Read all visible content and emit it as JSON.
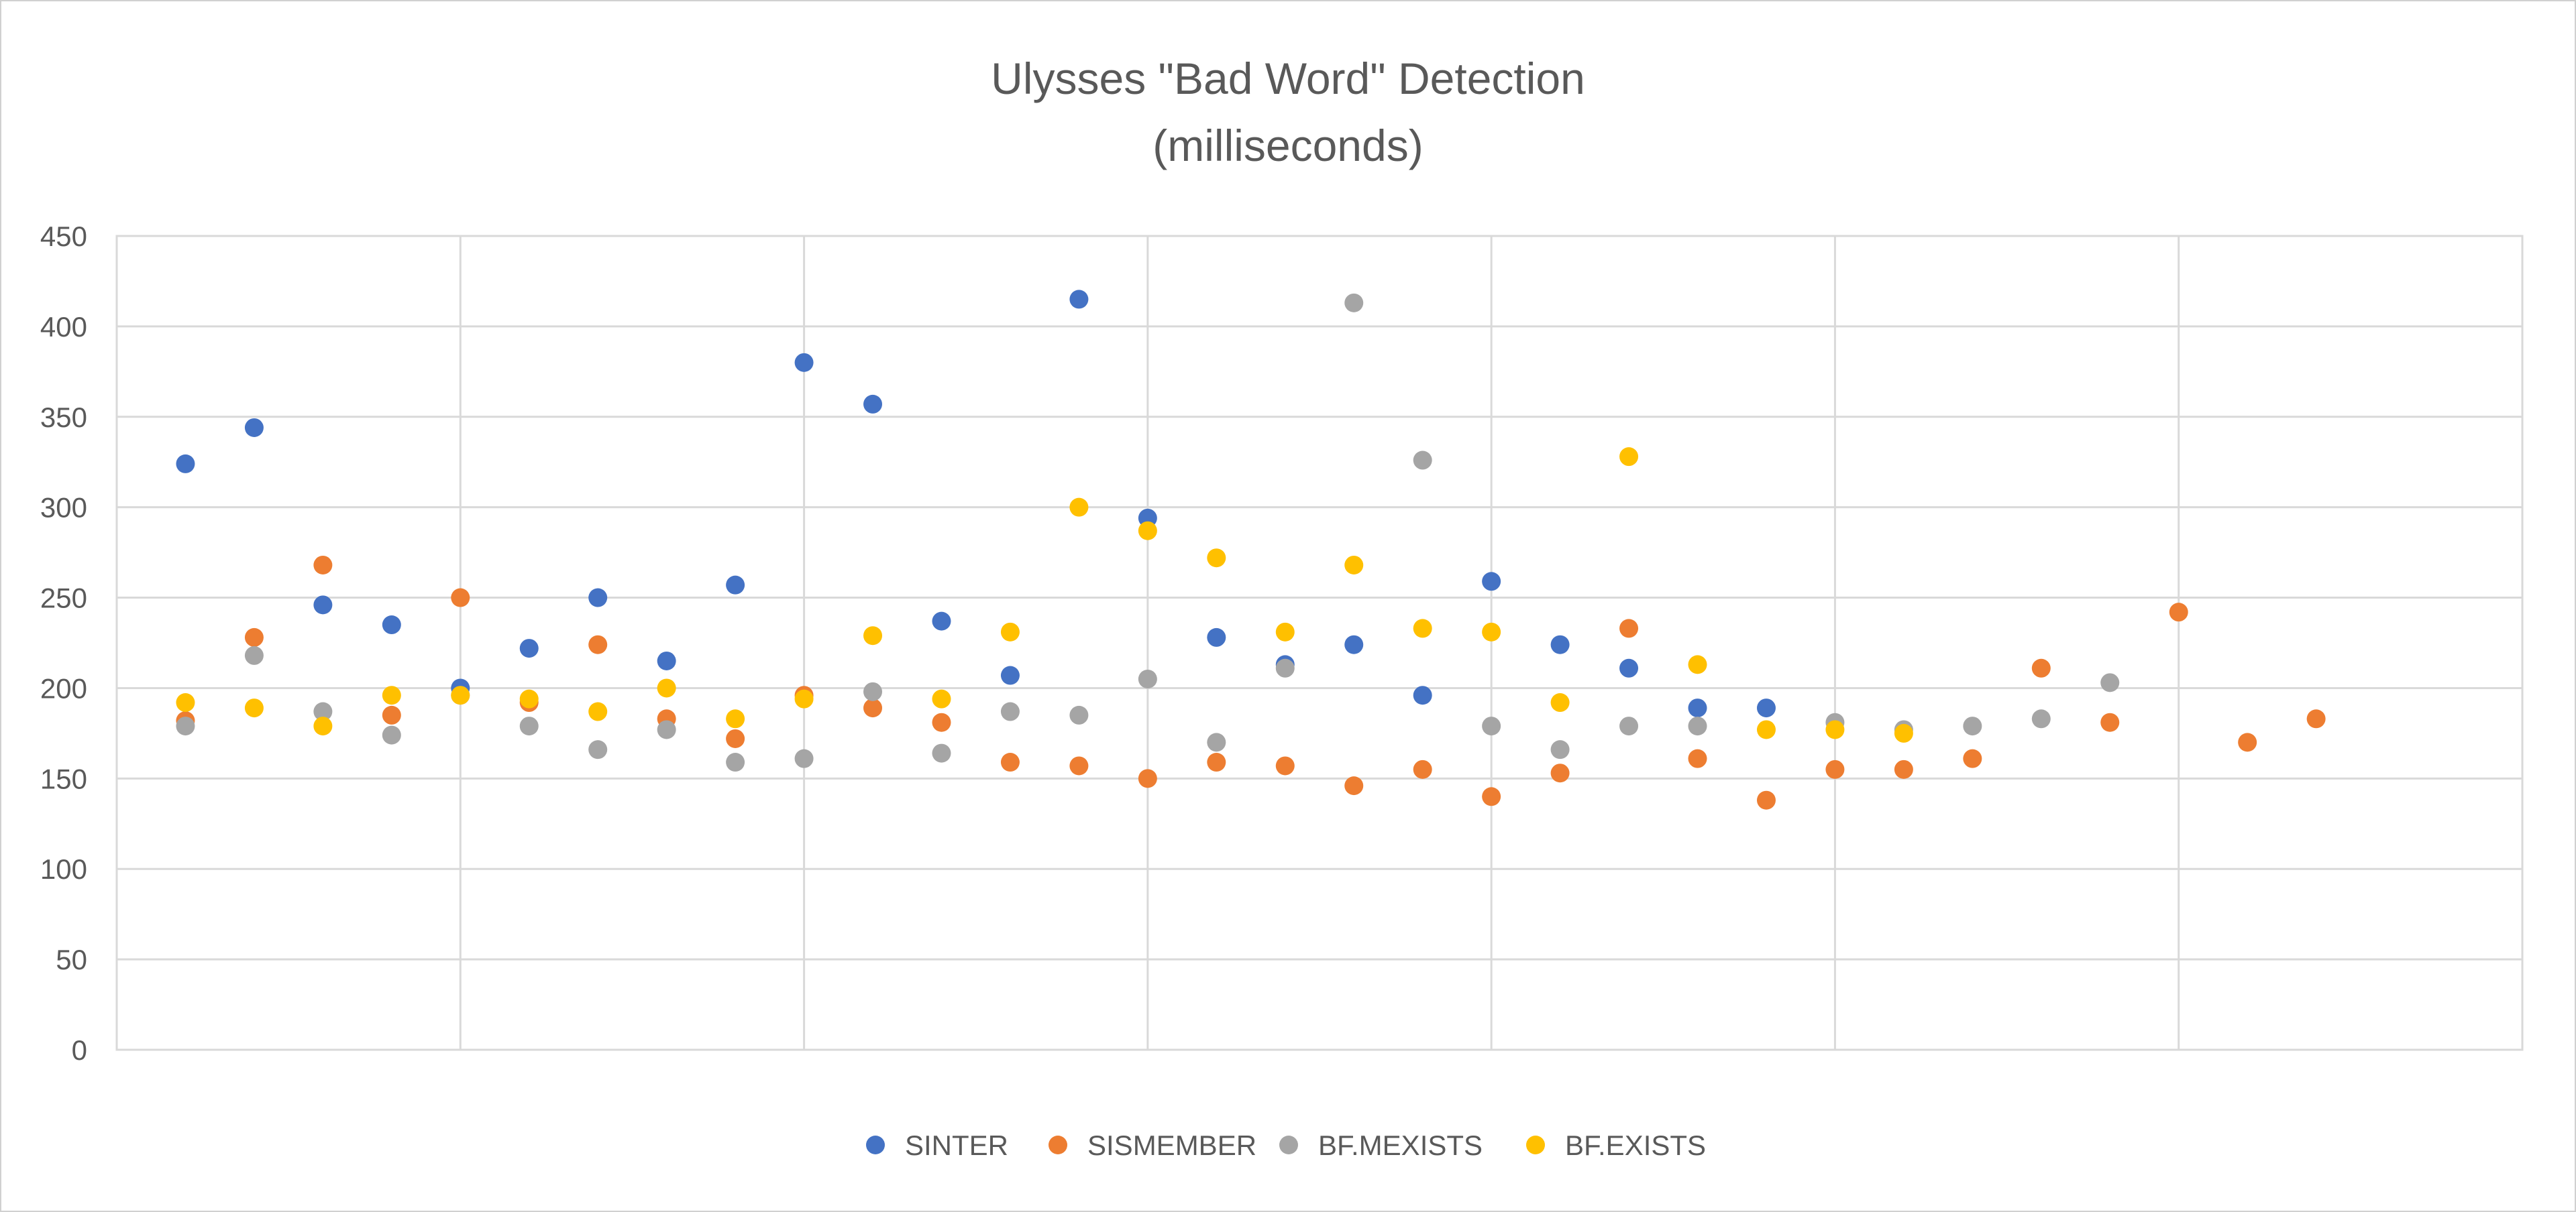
{
  "chart_data": {
    "type": "scatter",
    "title": "Ulysses  \"Bad Word\"  Detection",
    "subtitle": "(milliseconds)",
    "xlabel": "",
    "ylabel": "",
    "xlim": [
      0,
      35
    ],
    "ylim": [
      0,
      450
    ],
    "y_ticks": [
      0,
      50,
      100,
      150,
      200,
      250,
      300,
      350,
      400,
      450
    ],
    "x_gridlines": [
      0,
      5,
      10,
      15,
      20,
      25,
      30,
      35
    ],
    "grid": true,
    "legend_position": "bottom",
    "series": [
      {
        "name": "SINTER",
        "color": "#4472C4",
        "points": [
          [
            1,
            324
          ],
          [
            2,
            344
          ],
          [
            3,
            246
          ],
          [
            4,
            235
          ],
          [
            5,
            200
          ],
          [
            6,
            222
          ],
          [
            7,
            250
          ],
          [
            8,
            215
          ],
          [
            9,
            257
          ],
          [
            10,
            380
          ],
          [
            11,
            357
          ],
          [
            12,
            237
          ],
          [
            13,
            207
          ],
          [
            14,
            415
          ],
          [
            15,
            294
          ],
          [
            16,
            228
          ],
          [
            17,
            213
          ],
          [
            18,
            224
          ],
          [
            19,
            196
          ],
          [
            20,
            259
          ],
          [
            21,
            224
          ],
          [
            22,
            211
          ],
          [
            23,
            189
          ],
          [
            24,
            189
          ]
        ]
      },
      {
        "name": "SISMEMBER",
        "color": "#ED7D31",
        "points": [
          [
            1,
            182
          ],
          [
            2,
            228
          ],
          [
            3,
            268
          ],
          [
            4,
            185
          ],
          [
            5,
            250
          ],
          [
            6,
            192
          ],
          [
            7,
            224
          ],
          [
            8,
            183
          ],
          [
            9,
            172
          ],
          [
            10,
            196
          ],
          [
            11,
            189
          ],
          [
            12,
            181
          ],
          [
            13,
            159
          ],
          [
            14,
            157
          ],
          [
            15,
            150
          ],
          [
            16,
            159
          ],
          [
            17,
            157
          ],
          [
            18,
            146
          ],
          [
            19,
            155
          ],
          [
            20,
            140
          ],
          [
            21,
            153
          ],
          [
            22,
            233
          ],
          [
            23,
            161
          ],
          [
            24,
            138
          ],
          [
            25,
            155
          ],
          [
            26,
            155
          ],
          [
            27,
            161
          ],
          [
            28,
            211
          ],
          [
            29,
            181
          ],
          [
            30,
            242
          ],
          [
            31,
            170
          ],
          [
            32,
            183
          ]
        ]
      },
      {
        "name": "BF.MEXISTS",
        "color": "#A5A5A5",
        "points": [
          [
            1,
            179
          ],
          [
            2,
            218
          ],
          [
            3,
            187
          ],
          [
            4,
            174
          ],
          [
            5,
            196
          ],
          [
            6,
            179
          ],
          [
            7,
            166
          ],
          [
            8,
            177
          ],
          [
            9,
            159
          ],
          [
            10,
            161
          ],
          [
            11,
            198
          ],
          [
            12,
            164
          ],
          [
            13,
            187
          ],
          [
            14,
            185
          ],
          [
            15,
            205
          ],
          [
            16,
            170
          ],
          [
            17,
            211
          ],
          [
            18,
            413
          ],
          [
            19,
            326
          ],
          [
            20,
            179
          ],
          [
            21,
            166
          ],
          [
            22,
            179
          ],
          [
            23,
            179
          ],
          [
            25,
            181
          ],
          [
            26,
            177
          ],
          [
            27,
            179
          ],
          [
            28,
            183
          ],
          [
            29,
            203
          ]
        ]
      },
      {
        "name": "BF.EXISTS",
        "color": "#FFC000",
        "points": [
          [
            1,
            192
          ],
          [
            2,
            189
          ],
          [
            3,
            179
          ],
          [
            4,
            196
          ],
          [
            5,
            196
          ],
          [
            6,
            194
          ],
          [
            7,
            187
          ],
          [
            8,
            200
          ],
          [
            9,
            183
          ],
          [
            10,
            194
          ],
          [
            11,
            229
          ],
          [
            12,
            194
          ],
          [
            13,
            231
          ],
          [
            14,
            300
          ],
          [
            15,
            287
          ],
          [
            16,
            272
          ],
          [
            17,
            231
          ],
          [
            18,
            268
          ],
          [
            19,
            233
          ],
          [
            20,
            231
          ],
          [
            21,
            192
          ],
          [
            22,
            328
          ],
          [
            23,
            213
          ],
          [
            24,
            177
          ],
          [
            25,
            177
          ],
          [
            26,
            175
          ]
        ]
      }
    ]
  }
}
